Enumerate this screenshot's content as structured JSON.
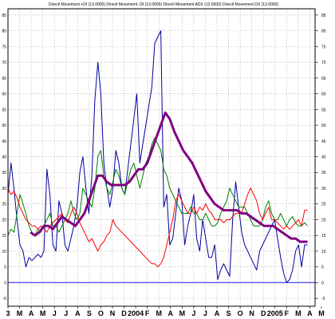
{
  "chart_data": {
    "type": "line",
    "title": "Directl Movement +DI (13.0000) Directl Movement -DI (13.0000) Directl Movement ADX (13.0000) Directl Movement DX (13.0000)",
    "xlabel": "",
    "ylabel": "",
    "xlim": [
      0,
      41
    ],
    "ylim": [
      -7.5,
      87
    ],
    "grid": true,
    "legend": "none",
    "x_ticks": [
      {
        "pos": 0.0,
        "label": "3"
      },
      {
        "pos": 1.55,
        "label": "M"
      },
      {
        "pos": 3.1,
        "label": "A"
      },
      {
        "pos": 4.65,
        "label": "M"
      },
      {
        "pos": 6.2,
        "label": "J"
      },
      {
        "pos": 7.75,
        "label": "J"
      },
      {
        "pos": 9.3,
        "label": "A"
      },
      {
        "pos": 10.85,
        "label": "S"
      },
      {
        "pos": 12.4,
        "label": "O"
      },
      {
        "pos": 13.95,
        "label": "N"
      },
      {
        "pos": 15.5,
        "label": "D"
      },
      {
        "pos": 17.05,
        "label": "2004"
      },
      {
        "pos": 18.6,
        "label": "F"
      },
      {
        "pos": 20.15,
        "label": "M"
      },
      {
        "pos": 21.7,
        "label": "A"
      },
      {
        "pos": 23.25,
        "label": "M"
      },
      {
        "pos": 24.8,
        "label": "J"
      },
      {
        "pos": 26.35,
        "label": "J"
      },
      {
        "pos": 27.9,
        "label": "A"
      },
      {
        "pos": 29.45,
        "label": "S"
      },
      {
        "pos": 31.0,
        "label": "O"
      },
      {
        "pos": 32.55,
        "label": "N"
      },
      {
        "pos": 34.1,
        "label": "D"
      },
      {
        "pos": 35.65,
        "label": "2005"
      },
      {
        "pos": 37.2,
        "label": "F"
      },
      {
        "pos": 38.75,
        "label": "M"
      },
      {
        "pos": 40.3,
        "label": "A"
      },
      {
        "pos": 41.85,
        "label": "M"
      }
    ],
    "y_ticks": [
      -5,
      0,
      5,
      10,
      15,
      20,
      25,
      30,
      35,
      40,
      45,
      50,
      55,
      60,
      65,
      70,
      75,
      80,
      85
    ],
    "reference_line": {
      "value": 0,
      "color": "#4a4ae8"
    },
    "series": [
      {
        "color": "#0000a0",
        "x": [
          0,
          0.4,
          0.8,
          1.2,
          1.6,
          2.0,
          2.4,
          2.8,
          3.2,
          3.6,
          4.0,
          4.4,
          4.8,
          5.2,
          5.6,
          6.0,
          6.4,
          6.8,
          7.2,
          7.6,
          8.0,
          8.4,
          8.8,
          9.2,
          9.6,
          10.0,
          10.4,
          10.8,
          11.2,
          11.6,
          12.0,
          12.4,
          12.8,
          13.2,
          13.6,
          14.0,
          14.4,
          14.8,
          15.2,
          15.6,
          16.0,
          16.4,
          16.8,
          17.2,
          17.6,
          18.0,
          18.4,
          18.8,
          19.2,
          19.6,
          20.0,
          20.4,
          20.8,
          21.2,
          21.6,
          22.0,
          22.4,
          22.8,
          23.2,
          23.6,
          24.0,
          24.4,
          24.8,
          25.2,
          25.6,
          26.0,
          26.4,
          26.8,
          27.2,
          27.6,
          28.0,
          28.4,
          28.8,
          29.2,
          29.6,
          30.0,
          30.4,
          30.8,
          31.2,
          31.6,
          32.0,
          32.4,
          32.8,
          33.2,
          33.6,
          34.0,
          34.4,
          34.8,
          35.2,
          35.6,
          36.0,
          36.4,
          36.8,
          37.2,
          37.6,
          38.0,
          38.4,
          38.8,
          39.2,
          39.6,
          40.0
        ],
        "values": [
          28,
          38,
          30,
          20,
          12,
          10,
          5,
          8,
          7,
          8,
          9,
          8,
          10,
          36,
          28,
          12,
          10,
          26,
          22,
          12,
          10,
          14,
          18,
          24,
          35,
          40,
          30,
          22,
          34,
          58,
          70,
          60,
          38,
          30,
          24,
          30,
          42,
          38,
          30,
          28,
          36,
          44,
          52,
          60,
          38,
          44,
          50,
          56,
          62,
          76,
          78,
          80,
          24,
          28,
          12,
          14,
          22,
          30,
          26,
          12,
          18,
          22,
          28,
          14,
          10,
          20,
          14,
          8,
          8,
          12,
          1,
          4,
          6,
          4,
          2,
          20,
          32,
          24,
          16,
          12,
          10,
          8,
          6,
          4,
          10,
          12,
          14,
          16,
          18,
          20,
          14,
          8,
          3,
          0,
          1,
          4,
          10,
          12,
          5,
          12,
          12
        ]
      },
      {
        "color": "#008000",
        "x": [
          0,
          0.4,
          0.8,
          1.2,
          1.6,
          2.0,
          2.4,
          2.8,
          3.2,
          3.6,
          4.0,
          4.4,
          4.8,
          5.2,
          5.6,
          6.0,
          6.4,
          6.8,
          7.2,
          7.6,
          8.0,
          8.4,
          8.8,
          9.2,
          9.6,
          10.0,
          10.4,
          10.8,
          11.2,
          11.6,
          12.0,
          12.4,
          12.8,
          13.2,
          13.6,
          14.0,
          14.4,
          14.8,
          15.2,
          15.6,
          16.0,
          16.4,
          16.8,
          17.2,
          17.6,
          18.0,
          18.4,
          18.8,
          19.2,
          19.6,
          20.0,
          20.4,
          20.8,
          21.2,
          21.6,
          22.0,
          22.4,
          22.8,
          23.2,
          23.6,
          24.0,
          24.4,
          24.8,
          25.2,
          25.6,
          26.0,
          26.4,
          26.8,
          27.2,
          27.6,
          28.0,
          28.4,
          28.8,
          29.2,
          29.6,
          30.0,
          30.4,
          30.8,
          31.2,
          31.6,
          32.0,
          32.4,
          32.8,
          33.2,
          33.6,
          34.0,
          34.4,
          34.8,
          35.2,
          35.6,
          36.0,
          36.4,
          36.8,
          37.2,
          37.6,
          38.0,
          38.4,
          38.8,
          39.2,
          39.6,
          40.0
        ],
        "values": [
          15,
          17,
          16,
          22,
          28,
          25,
          22,
          18,
          16,
          15,
          17,
          16,
          18,
          20,
          22,
          18,
          18,
          16,
          18,
          20,
          22,
          26,
          22,
          20,
          22,
          30,
          28,
          26,
          24,
          30,
          40,
          42,
          34,
          30,
          28,
          32,
          36,
          34,
          30,
          28,
          32,
          36,
          38,
          34,
          30,
          34,
          38,
          40,
          44,
          46,
          44,
          42,
          36,
          34,
          30,
          28,
          26,
          24,
          22,
          22,
          22,
          24,
          22,
          22,
          20,
          20,
          22,
          20,
          18,
          18,
          19,
          22,
          24,
          26,
          30,
          28,
          26,
          24,
          24,
          24,
          22,
          20,
          18,
          18,
          18,
          20,
          24,
          26,
          22,
          20,
          20,
          22,
          20,
          18,
          20,
          21,
          19,
          18,
          18,
          19,
          18
        ]
      },
      {
        "color": "#ff0000",
        "x": [
          0,
          0.4,
          0.8,
          1.2,
          1.6,
          2.0,
          2.4,
          2.8,
          3.2,
          3.6,
          4.0,
          4.4,
          4.8,
          5.2,
          5.6,
          6.0,
          6.4,
          6.8,
          7.2,
          7.6,
          8.0,
          8.4,
          8.8,
          9.2,
          9.6,
          10.0,
          10.4,
          10.8,
          11.2,
          11.6,
          12.0,
          12.4,
          12.8,
          13.2,
          13.6,
          14.0,
          14.4,
          14.8,
          15.2,
          15.6,
          16.0,
          16.4,
          16.8,
          17.2,
          17.6,
          18.0,
          18.4,
          18.8,
          19.2,
          19.6,
          20.0,
          20.4,
          20.8,
          21.2,
          21.6,
          22.0,
          22.4,
          22.8,
          23.2,
          23.6,
          24.0,
          24.4,
          24.8,
          25.2,
          25.6,
          26.0,
          26.4,
          26.8,
          27.2,
          27.6,
          28.0,
          28.4,
          28.8,
          29.2,
          29.6,
          30.0,
          30.4,
          30.8,
          31.2,
          31.6,
          32.0,
          32.4,
          32.8,
          33.2,
          33.6,
          34.0,
          34.4,
          34.8,
          35.2,
          35.6,
          36.0,
          36.4,
          36.8,
          37.2,
          37.6,
          38.0,
          38.4,
          38.8,
          39.2,
          39.6,
          40.0
        ],
        "values": [
          30,
          28,
          29,
          27,
          24,
          22,
          20,
          19,
          18,
          18,
          17,
          18,
          17,
          16,
          18,
          19,
          20,
          21,
          22,
          20,
          19,
          22,
          24,
          22,
          19,
          17,
          15,
          13,
          14,
          12,
          10,
          12,
          13,
          15,
          16,
          20,
          18,
          17,
          16,
          15,
          14,
          13,
          12,
          11,
          10,
          9,
          8,
          7,
          6,
          6,
          5,
          6,
          8,
          12,
          16,
          20,
          26,
          28,
          26,
          24,
          22,
          22,
          24,
          22,
          24,
          23,
          25,
          23,
          22,
          20,
          20,
          20,
          19,
          20,
          20,
          21,
          22,
          22,
          22,
          25,
          28,
          30,
          28,
          26,
          22,
          20,
          22,
          24,
          20,
          20,
          19,
          18,
          17,
          18,
          17,
          18,
          19,
          20,
          18,
          23,
          23
        ]
      },
      {
        "color": "#800080",
        "x": [
          3.0,
          3.6,
          4.2,
          4.8,
          5.4,
          6.0,
          6.6,
          7.2,
          7.8,
          8.4,
          9.0,
          9.6,
          10.2,
          10.8,
          11.4,
          12.0,
          12.6,
          13.2,
          13.8,
          14.4,
          15.0,
          15.6,
          16.2,
          16.8,
          17.4,
          18.0,
          18.6,
          19.2,
          19.8,
          20.4,
          21.0,
          21.6,
          22.2,
          22.8,
          23.4,
          24.0,
          24.6,
          25.2,
          25.8,
          26.4,
          27.0,
          27.6,
          28.2,
          28.8,
          29.4,
          30.0,
          30.6,
          31.2,
          31.8,
          32.4,
          33.0,
          33.6,
          34.2,
          34.8,
          35.4,
          36.0,
          36.6,
          37.2,
          37.8,
          38.4,
          39.0,
          39.6,
          40.0
        ],
        "values": [
          16,
          15,
          16,
          18,
          18,
          17,
          19,
          21,
          20,
          19,
          18,
          20,
          22,
          26,
          30,
          34,
          34,
          32,
          31,
          31,
          31,
          31,
          32,
          34,
          36,
          36,
          38,
          42,
          46,
          50,
          54,
          52,
          48,
          45,
          42,
          40,
          38,
          35,
          32,
          29,
          27,
          25,
          24,
          23,
          23,
          23,
          23,
          22,
          22,
          21,
          20,
          19,
          18,
          18,
          18,
          17,
          16,
          15,
          14,
          14,
          13,
          13,
          13
        ]
      }
    ]
  }
}
